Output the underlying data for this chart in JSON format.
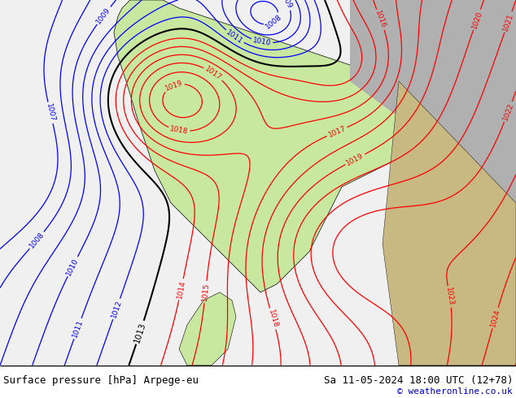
{
  "title_left": "Surface pressure [hPa] Arpege-eu",
  "title_right": "Sa 11-05-2024 18:00 UTC (12+78)",
  "copyright": "© weatheronline.co.uk",
  "bg_color": "#ffffff",
  "text_color_left": "#000000",
  "text_color_right": "#000000",
  "copyright_color": "#0000cc",
  "fig_width": 6.34,
  "fig_height": 4.9,
  "dpi": 100,
  "land_green": "#c8e8a0",
  "sea_color": "#e8e8e8",
  "gray_color": "#b0b0b0",
  "tan_color": "#c8b882"
}
